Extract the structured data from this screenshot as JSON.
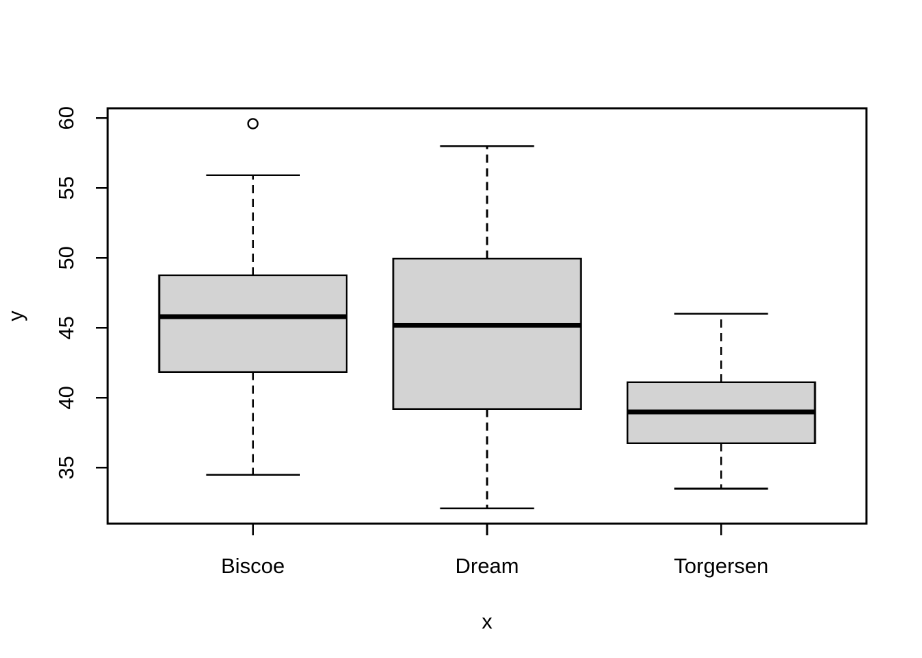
{
  "figure": {
    "kind": "R base-graphics boxplot",
    "background": "#ffffff"
  },
  "chart_data": {
    "type": "boxplot",
    "title": "",
    "xlabel": "x",
    "ylabel": "y",
    "categories": [
      "Biscoe",
      "Dream",
      "Torgersen"
    ],
    "y_ticks": [
      35,
      40,
      45,
      50,
      55,
      60
    ],
    "ylim": [
      31.0,
      60.7
    ],
    "x_domain": [
      0.38,
      3.62
    ],
    "grid": false,
    "legend": null,
    "box_fill": "#d3d3d3",
    "line_color": "#000000",
    "series": [
      {
        "name": "Biscoe",
        "x": 1,
        "whisker_low": 34.5,
        "q1": 41.85,
        "median": 45.8,
        "q3": 48.75,
        "whisker_high": 55.9,
        "outliers": [
          59.6
        ]
      },
      {
        "name": "Dream",
        "x": 2,
        "whisker_low": 32.1,
        "q1": 39.2,
        "median": 45.2,
        "q3": 49.95,
        "whisker_high": 58.0,
        "outliers": []
      },
      {
        "name": "Torgersen",
        "x": 3,
        "whisker_low": 33.5,
        "q1": 36.75,
        "median": 39.0,
        "q3": 41.1,
        "whisker_high": 46.0,
        "outliers": []
      }
    ]
  }
}
